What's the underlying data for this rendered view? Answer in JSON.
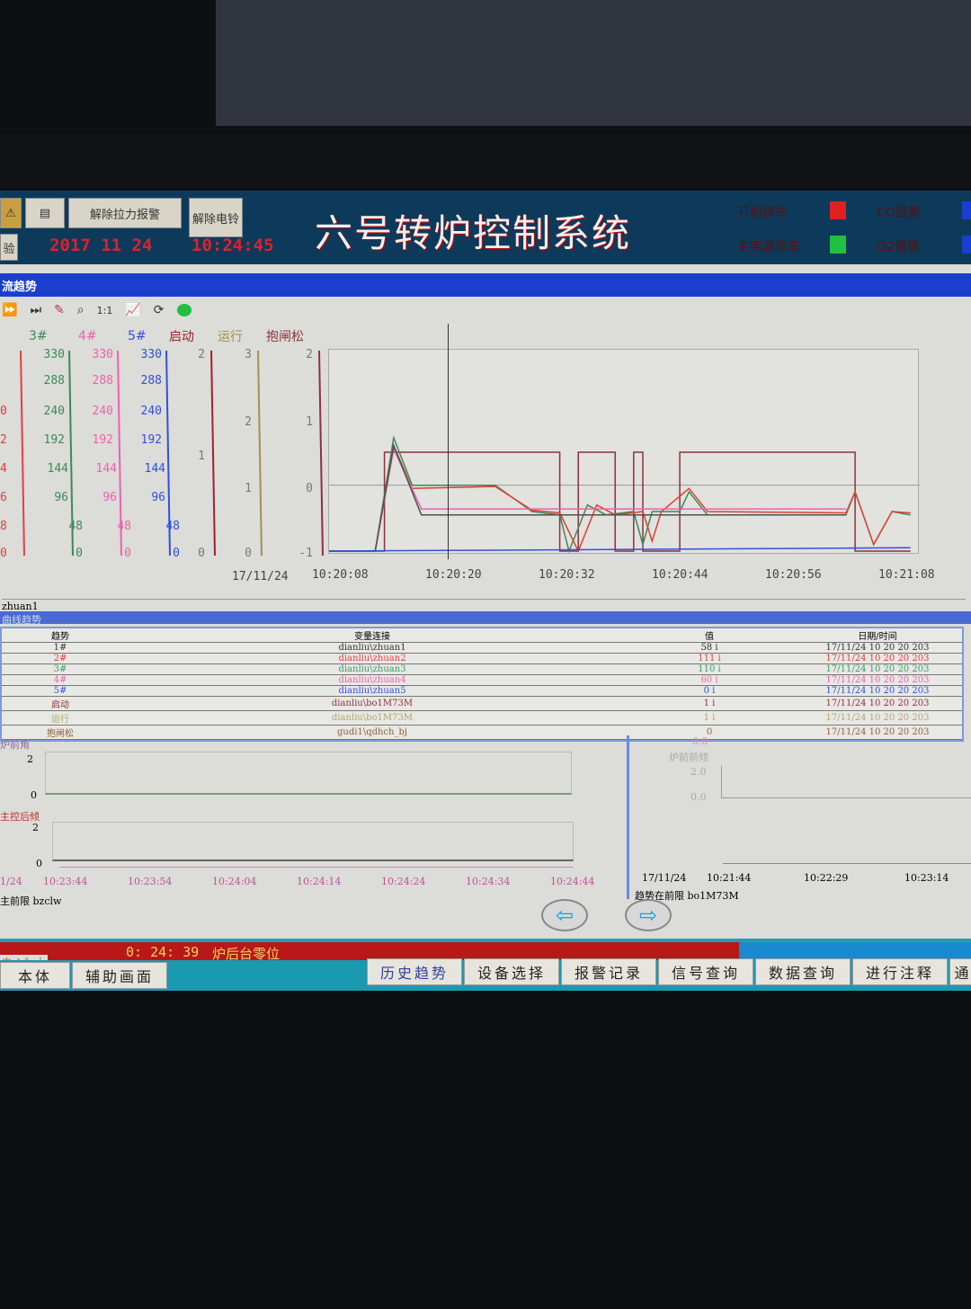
{
  "header": {
    "title": "六号转炉控制系统",
    "date": "2017 11 24",
    "time": "10:24:45",
    "btn_silence_alarm": "解除拉力报警",
    "btn_release_bell": "解除电铃",
    "btn_left": "验",
    "status": [
      {
        "label": "开机停车",
        "color": "#e02020"
      },
      {
        "label": "CO报警",
        "color": "#1a3fcf"
      },
      {
        "label": "主电源停车",
        "color": "#20c040"
      },
      {
        "label": "O2报警",
        "color": "#1a3fcf"
      }
    ]
  },
  "window": {
    "title": "流趋势",
    "status_tag": "zhuan1"
  },
  "toolbar": {
    "icons": [
      "fast-forward-icon",
      "skip-end-icon",
      "pens-icon",
      "zoom-icon",
      "one-to-one-icon",
      "chart-icon",
      "refresh-icon",
      "online-icon"
    ]
  },
  "trend": {
    "pens": [
      {
        "label": "3#",
        "color": "#3a8a5a"
      },
      {
        "label": "4#",
        "color": "#f060b0"
      },
      {
        "label": "5#",
        "color": "#3050e0"
      },
      {
        "label": "启动",
        "color": "#a02030"
      },
      {
        "label": "运行",
        "color": "#a09050"
      },
      {
        "label": "抱闸松",
        "color": "#903040"
      }
    ],
    "current_axis_ticks": [
      "330",
      "288",
      "240",
      "192",
      "144",
      "96",
      "48",
      "0"
    ],
    "left_partial_ticks": [
      "0",
      "2",
      "4",
      "6",
      "8",
      "0"
    ],
    "qidong_ticks": [
      "2",
      "1",
      "0"
    ],
    "yunxing_ticks": [
      "3",
      "2",
      "1",
      "0"
    ],
    "baozha_ticks": [
      "2",
      "1",
      "0",
      "-1"
    ],
    "date": "17/11/24",
    "time_ticks": [
      "10:20:08",
      "10:20:20",
      "10:20:32",
      "10:20:44",
      "10:20:56",
      "10:21:08"
    ]
  },
  "chart_data": {
    "type": "line",
    "ylim": [
      -1,
      2
    ],
    "xlim": [
      "10:20:06",
      "10:21:10"
    ],
    "grid": false,
    "series": [
      {
        "color": "#903040",
        "points": [
          [
            "10:20:06",
            -1
          ],
          [
            "10:20:12",
            -1
          ],
          [
            "10:20:12",
            0.5
          ],
          [
            "10:20:31",
            0.5
          ],
          [
            "10:20:31",
            -1
          ],
          [
            "10:20:33",
            -1
          ],
          [
            "10:20:33",
            0.5
          ],
          [
            "10:20:37",
            0.5
          ],
          [
            "10:20:37",
            -1
          ],
          [
            "10:20:39",
            -1
          ],
          [
            "10:20:39",
            0.5
          ],
          [
            "10:20:40",
            0.5
          ],
          [
            "10:20:40",
            -1
          ],
          [
            "10:20:44",
            -1
          ],
          [
            "10:20:44",
            0.5
          ],
          [
            "10:21:03",
            0.5
          ],
          [
            "10:21:03",
            -1
          ],
          [
            "10:21:09",
            -1
          ]
        ]
      },
      {
        "color": "#3a8a5a",
        "points": [
          [
            "10:20:06",
            -1
          ],
          [
            "10:20:11",
            -1
          ],
          [
            "10:20:13",
            0.72
          ],
          [
            "10:20:15",
            0
          ],
          [
            "10:20:24",
            0
          ],
          [
            "10:20:28",
            -0.4
          ],
          [
            "10:20:31",
            -0.45
          ],
          [
            "10:20:32",
            -1
          ],
          [
            "10:20:34",
            -0.3
          ],
          [
            "10:20:36",
            -0.45
          ],
          [
            "10:20:39",
            -0.4
          ],
          [
            "10:20:40",
            -0.9
          ],
          [
            "10:20:41",
            -0.4
          ],
          [
            "10:20:44",
            -0.4
          ],
          [
            "10:20:45",
            -0.1
          ],
          [
            "10:20:47",
            -0.45
          ],
          [
            "10:21:02",
            -0.45
          ],
          [
            "10:21:03",
            -0.1
          ],
          [
            "10:21:05",
            -0.9
          ],
          [
            "10:21:07",
            -0.4
          ],
          [
            "10:21:09",
            -0.45
          ]
        ]
      },
      {
        "color": "#e04030",
        "points": [
          [
            "10:20:06",
            -1
          ],
          [
            "10:20:11",
            -1
          ],
          [
            "10:20:13",
            0.6
          ],
          [
            "10:20:15",
            -0.05
          ],
          [
            "10:20:24",
            -0.02
          ],
          [
            "10:20:28",
            -0.38
          ],
          [
            "10:20:31",
            -0.42
          ],
          [
            "10:20:33",
            -1
          ],
          [
            "10:20:35",
            -0.3
          ],
          [
            "10:20:37",
            -0.45
          ],
          [
            "10:20:40",
            -0.4
          ],
          [
            "10:20:41",
            -0.85
          ],
          [
            "10:20:42",
            -0.4
          ],
          [
            "10:20:45",
            -0.05
          ],
          [
            "10:20:47",
            -0.4
          ],
          [
            "10:21:02",
            -0.42
          ],
          [
            "10:21:03",
            -0.1
          ],
          [
            "10:21:05",
            -0.9
          ],
          [
            "10:21:07",
            -0.4
          ],
          [
            "10:21:09",
            -0.42
          ]
        ]
      },
      {
        "color": "#f060b0",
        "points": [
          [
            "10:20:06",
            -1
          ],
          [
            "10:20:11",
            -1
          ],
          [
            "10:20:13",
            0.55
          ],
          [
            "10:20:16",
            -0.36
          ],
          [
            "10:20:30",
            -0.36
          ],
          [
            "10:21:02",
            -0.36
          ]
        ]
      },
      {
        "color": "#505050",
        "points": [
          [
            "10:20:06",
            -1
          ],
          [
            "10:20:11",
            -1
          ],
          [
            "10:20:13",
            0.6
          ],
          [
            "10:20:16",
            -0.45
          ],
          [
            "10:20:30",
            -0.45
          ],
          [
            "10:21:02",
            -0.45
          ]
        ]
      },
      {
        "color": "#3050e0",
        "points": [
          [
            "10:20:06",
            -1
          ],
          [
            "10:21:09",
            -0.95
          ]
        ]
      }
    ]
  },
  "table": {
    "title": "曲线趋势",
    "headers": [
      "趋势",
      "变量连接",
      "值",
      "日期/时间"
    ],
    "rows": [
      {
        "pen": "1#",
        "tag": "dianliu\\zhuan1",
        "value": "58 i",
        "time": "17/11/24 10 20 20 203",
        "color": "#333333"
      },
      {
        "pen": "2#",
        "tag": "dianliu\\zhuan2",
        "value": "111 i",
        "time": "17/11/24 10 20 20 203",
        "color": "#e04040"
      },
      {
        "pen": "3#",
        "tag": "dianliu\\zhuan3",
        "value": "110 i",
        "time": "17/11/24 10 20 20 203",
        "color": "#3a9a6a"
      },
      {
        "pen": "4#",
        "tag": "dianliu\\zhuan4",
        "value": "60 i",
        "time": "17/11/24 10 20 20 203",
        "color": "#f060b0"
      },
      {
        "pen": "5#",
        "tag": "dianliu\\zhuan5",
        "value": "0 i",
        "time": "17/11/24 10 20 20 203",
        "color": "#3050e0"
      },
      {
        "pen": "启动",
        "tag": "dianliu\\bo1M73M",
        "value": "1 i",
        "time": "17/11/24 10 20 20 203",
        "color": "#903040"
      },
      {
        "pen": "运行",
        "tag": "dianliu\\bo1M73M",
        "value": "1 i",
        "time": "17/11/24 10 20 20 203",
        "color": "#b0a870"
      },
      {
        "pen": "抱闸松",
        "tag": "gudi1\\qdhch_bj",
        "value": "0",
        "time": "17/11/24 10 20 20 203",
        "color": "#906040"
      }
    ]
  },
  "lower_left": {
    "chart1_label": "炉前角",
    "chart2_label": "主控后倾",
    "y_ticks": [
      "2",
      "0"
    ],
    "date": "1/24",
    "time_ticks": [
      "10:23:44",
      "10:23:54",
      "10:24:04",
      "10:24:14",
      "10:24:24",
      "10:24:34",
      "10:24:44"
    ],
    "status": "主前限 bzclw"
  },
  "lower_right": {
    "top_value": "0.0",
    "label": "炉前前倾",
    "y_ticks": [
      "2.0",
      "0.0"
    ],
    "date": "17/11/24",
    "time_ticks": [
      "10:21:44",
      "10:22:29",
      "10:23:14"
    ],
    "status": "趋势在前限 bo1M73M"
  },
  "alarm_bar": {
    "ime": "中 ♪ °, 大",
    "text": "0: 24: 39",
    "message": "炉后台零位"
  },
  "nav": {
    "left": [
      "本体",
      "辅助画面"
    ],
    "right": [
      "历史趋势",
      "设备选择",
      "报警记录",
      "信号查询",
      "数据查询",
      "进行注释",
      "通"
    ]
  }
}
